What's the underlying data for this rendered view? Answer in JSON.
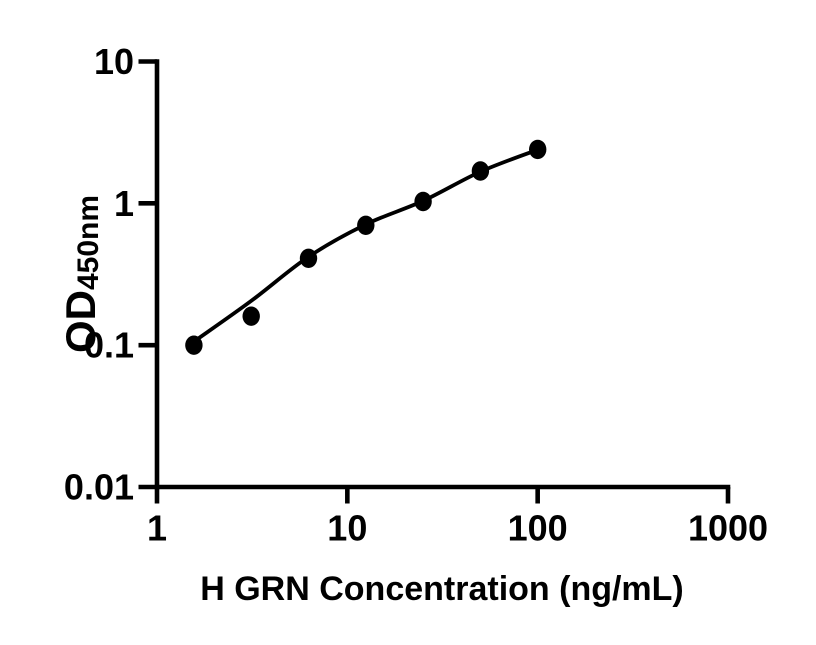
{
  "figure": {
    "background_color": "#ffffff",
    "ink_color": "#000000"
  },
  "chart_data": {
    "type": "scatter",
    "title": "",
    "xlabel": "H GRN Concentration (ng/mL)",
    "ylabel": "OD",
    "ylabel_subscript": "450nm",
    "x_scale": "log",
    "y_scale": "log",
    "xlim": [
      1,
      1000
    ],
    "ylim": [
      0.01,
      10
    ],
    "x_tick_values": [
      1,
      10,
      100,
      1000
    ],
    "x_tick_labels": [
      "1",
      "10",
      "100",
      "1000"
    ],
    "y_tick_values": [
      10,
      1,
      0.1,
      0.01
    ],
    "y_tick_labels": [
      "10",
      "1",
      "0.1",
      "0.01"
    ],
    "grid": false,
    "legend": "none",
    "marker": "filled-circle",
    "marker_color": "#000000",
    "line_color": "#000000",
    "series": [
      {
        "name": "standard-points",
        "type": "scatter",
        "x": [
          1.5625,
          3.125,
          6.25,
          12.5,
          25,
          50,
          100
        ],
        "y": [
          0.1,
          0.16,
          0.41,
          0.7,
          1.03,
          1.69,
          2.4
        ]
      },
      {
        "name": "fit-curve",
        "type": "line",
        "x": [
          1.5625,
          3.125,
          6.25,
          12.5,
          25,
          50,
          100
        ],
        "y": [
          0.106,
          0.205,
          0.42,
          0.71,
          1.04,
          1.67,
          2.39
        ]
      }
    ]
  }
}
